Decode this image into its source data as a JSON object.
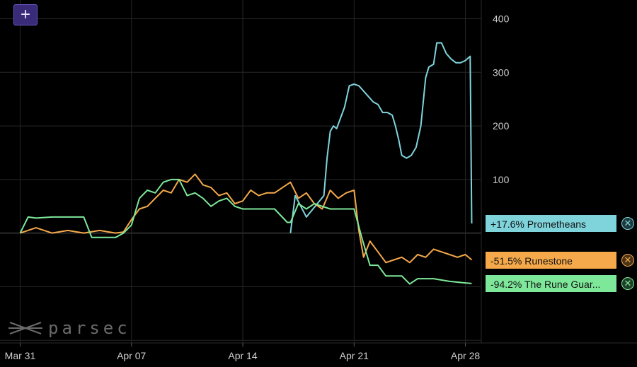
{
  "toolbar": {
    "add_label": "+"
  },
  "logo": {
    "text": "parsec"
  },
  "chart_data": {
    "type": "line",
    "x_ticks": [
      "Mar 31",
      "Apr 07",
      "Apr 14",
      "Apr 21",
      "Apr 28"
    ],
    "y_ticks": [
      100,
      200,
      300,
      400
    ],
    "ylim": [
      -205,
      435
    ],
    "xlim": [
      "Mar 30",
      "Apr 29"
    ],
    "grid": true,
    "legend_position": "right",
    "series": [
      {
        "name": "Prometheans",
        "label": "+17.6% Prometheans",
        "color": "#7fd4dc",
        "x": [
          "Apr 17",
          "Apr 17.3",
          "Apr 18",
          "Apr 19.1",
          "Apr 19.3",
          "Apr 19.5",
          "Apr 19.7",
          "Apr 19.9",
          "Apr 20.4",
          "Apr 20.7",
          "Apr 21",
          "Apr 21.3",
          "Apr 21.6",
          "Apr 21.9",
          "Apr 22.2",
          "Apr 22.5",
          "Apr 22.8",
          "Apr 23.1",
          "Apr 23.4",
          "Apr 23.6",
          "Apr 23.8",
          "Apr 24",
          "Apr 24.3",
          "Apr 24.6",
          "Apr 24.9",
          "Apr 25.2",
          "Apr 25.5",
          "Apr 25.7",
          "Apr 26",
          "Apr 26.2",
          "Apr 26.5",
          "Apr 26.8",
          "Apr 27.1",
          "Apr 27.4",
          "Apr 27.7",
          "Apr 28",
          "Apr 28.3",
          "Apr 28.4"
        ],
        "y": [
          0,
          70,
          30,
          70,
          140,
          190,
          200,
          195,
          235,
          275,
          278,
          275,
          265,
          255,
          245,
          240,
          225,
          225,
          220,
          200,
          175,
          145,
          140,
          145,
          160,
          200,
          290,
          310,
          315,
          355,
          355,
          335,
          325,
          318,
          318,
          322,
          330,
          18
        ]
      },
      {
        "name": "Runestone",
        "label": "-51.5% Runestone",
        "color": "#f5a94a",
        "x": [
          "Mar 31",
          "Apr 1",
          "Apr 2",
          "Apr 3",
          "Apr 4",
          "Apr 5",
          "Apr 6",
          "Apr 6.5",
          "Apr 7",
          "Apr 7.5",
          "Apr 8",
          "Apr 8.5",
          "Apr 9",
          "Apr 9.5",
          "Apr 10",
          "Apr 10.5",
          "Apr 11",
          "Apr 11.5",
          "Apr 12",
          "Apr 12.5",
          "Apr 13",
          "Apr 13.5",
          "Apr 14",
          "Apr 14.5",
          "Apr 15",
          "Apr 15.5",
          "Apr 16",
          "Apr 16.5",
          "Apr 17",
          "Apr 17.5",
          "Apr 18",
          "Apr 18.5",
          "Apr 19",
          "Apr 19.5",
          "Apr 20",
          "Apr 20.5",
          "Apr 21",
          "Apr 21.3",
          "Apr 21.6",
          "Apr 22",
          "Apr 22.5",
          "Apr 23",
          "Apr 23.5",
          "Apr 24",
          "Apr 24.5",
          "Apr 25",
          "Apr 25.5",
          "Apr 26",
          "Apr 26.5",
          "Apr 27",
          "Apr 27.5",
          "Apr 28",
          "Apr 28.4"
        ],
        "y": [
          0,
          10,
          0,
          5,
          0,
          5,
          0,
          2,
          25,
          45,
          50,
          65,
          80,
          75,
          100,
          95,
          110,
          90,
          85,
          70,
          75,
          55,
          60,
          80,
          70,
          75,
          75,
          85,
          95,
          65,
          75,
          55,
          45,
          80,
          65,
          75,
          80,
          5,
          -45,
          -15,
          -35,
          -55,
          -50,
          -45,
          -55,
          -40,
          -45,
          -30,
          -35,
          -40,
          -45,
          -40,
          -50
        ]
      },
      {
        "name": "The Rune Guardians",
        "label": "-94.2% The Rune Guar...",
        "color": "#7ee89a",
        "x": [
          "Mar 31",
          "Mar 31.5",
          "Apr 1",
          "Apr 2",
          "Apr 3",
          "Apr 4",
          "Apr 4.5",
          "Apr 5",
          "Apr 6",
          "Apr 6.5",
          "Apr 7",
          "Apr 7.5",
          "Apr 8",
          "Apr 8.5",
          "Apr 9",
          "Apr 9.5",
          "Apr 10",
          "Apr 10.5",
          "Apr 11",
          "Apr 11.5",
          "Apr 12",
          "Apr 12.5",
          "Apr 13",
          "Apr 13.5",
          "Apr 14",
          "Apr 15",
          "Apr 16",
          "Apr 16.8",
          "Apr 17",
          "Apr 17.5",
          "Apr 18",
          "Apr 18.5",
          "Apr 19",
          "Apr 19.5",
          "Apr 20",
          "Apr 20.5",
          "Apr 21",
          "Apr 21.5",
          "Apr 22",
          "Apr 22.5",
          "Apr 23",
          "Apr 24",
          "Apr 24.5",
          "Apr 25",
          "Apr 26",
          "Apr 27",
          "Apr 28",
          "Apr 28.4"
        ],
        "y": [
          0,
          30,
          28,
          30,
          30,
          30,
          -8,
          -8,
          -8,
          0,
          15,
          65,
          80,
          75,
          95,
          100,
          100,
          70,
          75,
          65,
          50,
          60,
          65,
          50,
          45,
          45,
          45,
          20,
          20,
          55,
          45,
          55,
          50,
          45,
          45,
          45,
          45,
          -10,
          -60,
          -60,
          -80,
          -80,
          -95,
          -85,
          -85,
          -90,
          -93,
          -94
        ]
      }
    ]
  }
}
